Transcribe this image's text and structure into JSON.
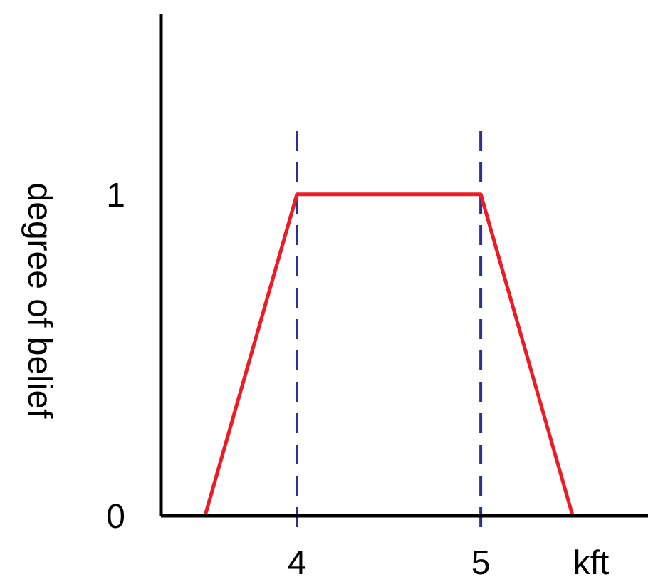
{
  "chart_data": {
    "type": "line",
    "xlabel": "kft",
    "ylabel": "degree of belief",
    "x": [
      3.5,
      4,
      5,
      5.5
    ],
    "series": [
      {
        "color": "#ed1c24",
        "values": [
          0,
          1,
          1,
          0
        ]
      }
    ],
    "xlim": [
      3.26,
      5.91
    ],
    "ylim": [
      0,
      1.56
    ],
    "xticks": [
      4,
      5
    ],
    "yticks": [
      0,
      1
    ],
    "ref_lines": [
      {
        "axis": "x",
        "value": 4,
        "color": "#2e3192",
        "line_style": "dashed"
      },
      {
        "axis": "x",
        "value": 5,
        "color": "#2e3192",
        "line_style": "dashed"
      }
    ],
    "grid": false,
    "marker": "none",
    "line_style": "solid"
  }
}
